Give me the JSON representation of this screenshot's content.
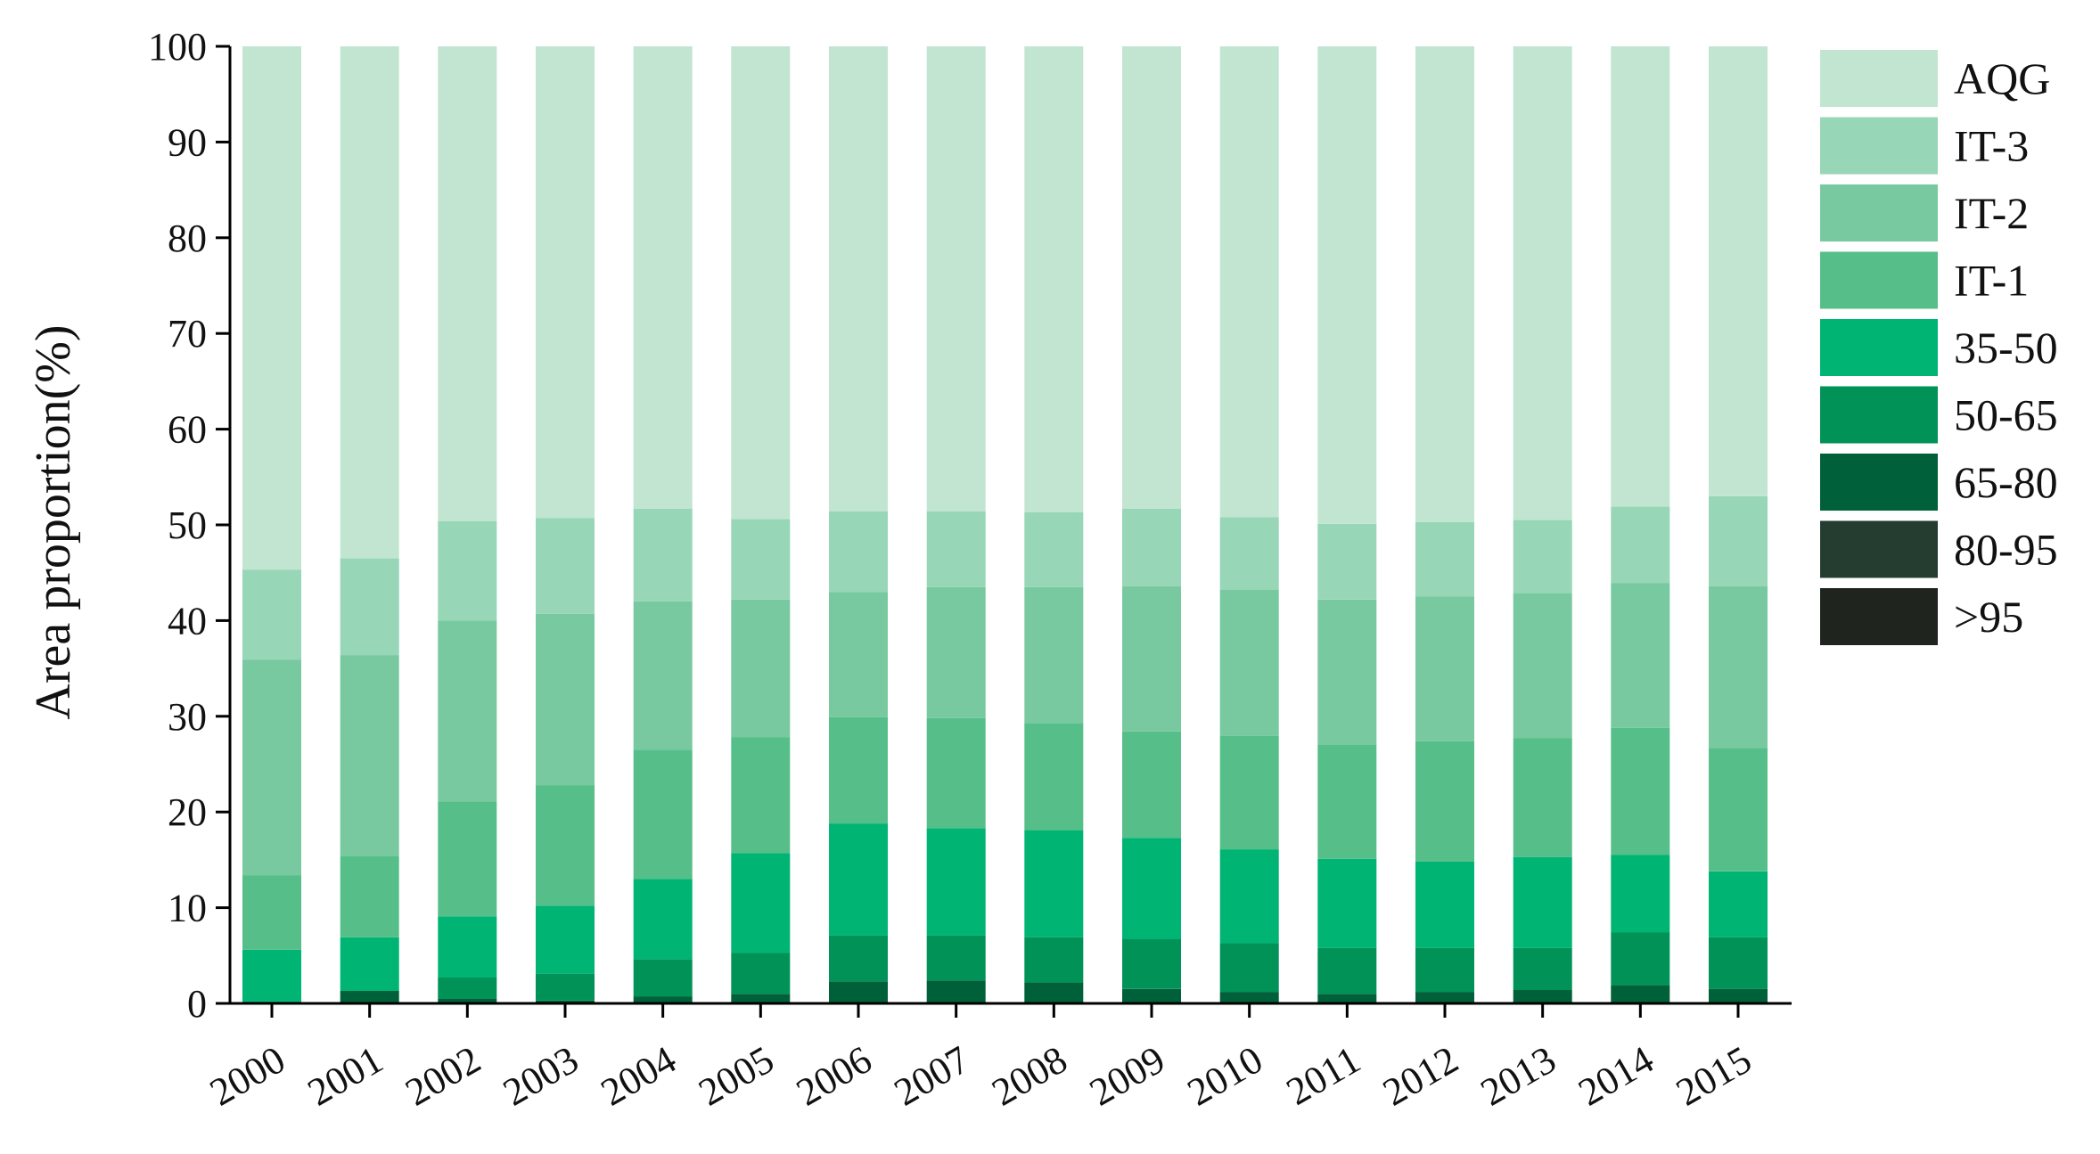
{
  "chart_data": {
    "type": "bar",
    "stacked": true,
    "title": "",
    "xlabel": "",
    "ylabel": "Area proportion(%)",
    "ylim": [
      0,
      100
    ],
    "yticks": [
      "0",
      "10",
      "20",
      "30",
      "40",
      "50",
      "60",
      "70",
      "80",
      "90",
      "100"
    ],
    "categories": [
      "2000",
      "2001",
      "2002",
      "2003",
      "2004",
      "2005",
      "2006",
      "2007",
      "2008",
      "2009",
      "2010",
      "2011",
      "2012",
      "2013",
      "2014",
      "2015"
    ],
    "legend_position": "right",
    "grid": false,
    "series": [
      {
        "name": ">95",
        "color": "#1f241f",
        "values": [
          0,
          0,
          0,
          0,
          0,
          0,
          0,
          0,
          0,
          0,
          0,
          0,
          0,
          0,
          0,
          0
        ]
      },
      {
        "name": "80-95",
        "color": "#243d30",
        "values": [
          0,
          0,
          0,
          0,
          0,
          0,
          0,
          0,
          0,
          0,
          0,
          0,
          0,
          0,
          0,
          0
        ]
      },
      {
        "name": "65-80",
        "color": "#006039",
        "values": [
          0,
          1.3,
          0.5,
          0.3,
          0.7,
          1,
          2.3,
          2.4,
          2.2,
          1.5,
          1.2,
          1,
          1.2,
          1.4,
          1.9,
          1.5
        ]
      },
      {
        "name": "50-65",
        "color": "#009257",
        "values": [
          0.2,
          0,
          2.2,
          2.8,
          3.9,
          4.3,
          4.8,
          4.7,
          4.7,
          5.2,
          5.1,
          4.8,
          4.6,
          4.4,
          5.5,
          5.4
        ]
      },
      {
        "name": "35-50",
        "color": "#00b473",
        "values": [
          5.4,
          5.6,
          6.4,
          7.1,
          8.4,
          10.4,
          11.7,
          11.2,
          11.2,
          10.6,
          9.8,
          9.3,
          9,
          9.5,
          8.1,
          6.9
        ]
      },
      {
        "name": "IT-1",
        "color": "#56bf89",
        "values": [
          7.8,
          8.5,
          12,
          12.6,
          13.5,
          12.1,
          11.1,
          11.5,
          11.2,
          11.1,
          11.9,
          11.9,
          12.6,
          12.4,
          13.3,
          12.9
        ]
      },
      {
        "name": "IT-2",
        "color": "#78c99f",
        "values": [
          22.5,
          21,
          18.9,
          17.9,
          15.5,
          14.4,
          13.1,
          13.7,
          14.2,
          15.2,
          15.2,
          15.2,
          15.1,
          15.2,
          15.1,
          16.9
        ]
      },
      {
        "name": "IT-3",
        "color": "#97d6b6",
        "values": [
          9.4,
          10.1,
          10.4,
          10,
          9.7,
          8.4,
          8.4,
          7.9,
          7.8,
          8.1,
          7.6,
          7.9,
          7.8,
          7.6,
          8,
          9.4
        ]
      },
      {
        "name": "AQG",
        "color": "#c2e5d2",
        "values": [
          54.7,
          53.5,
          49.6,
          49.3,
          48.3,
          49.4,
          48.6,
          48.6,
          48.7,
          48.3,
          49.2,
          49.9,
          49.7,
          49.5,
          48.1,
          47
        ]
      }
    ]
  }
}
